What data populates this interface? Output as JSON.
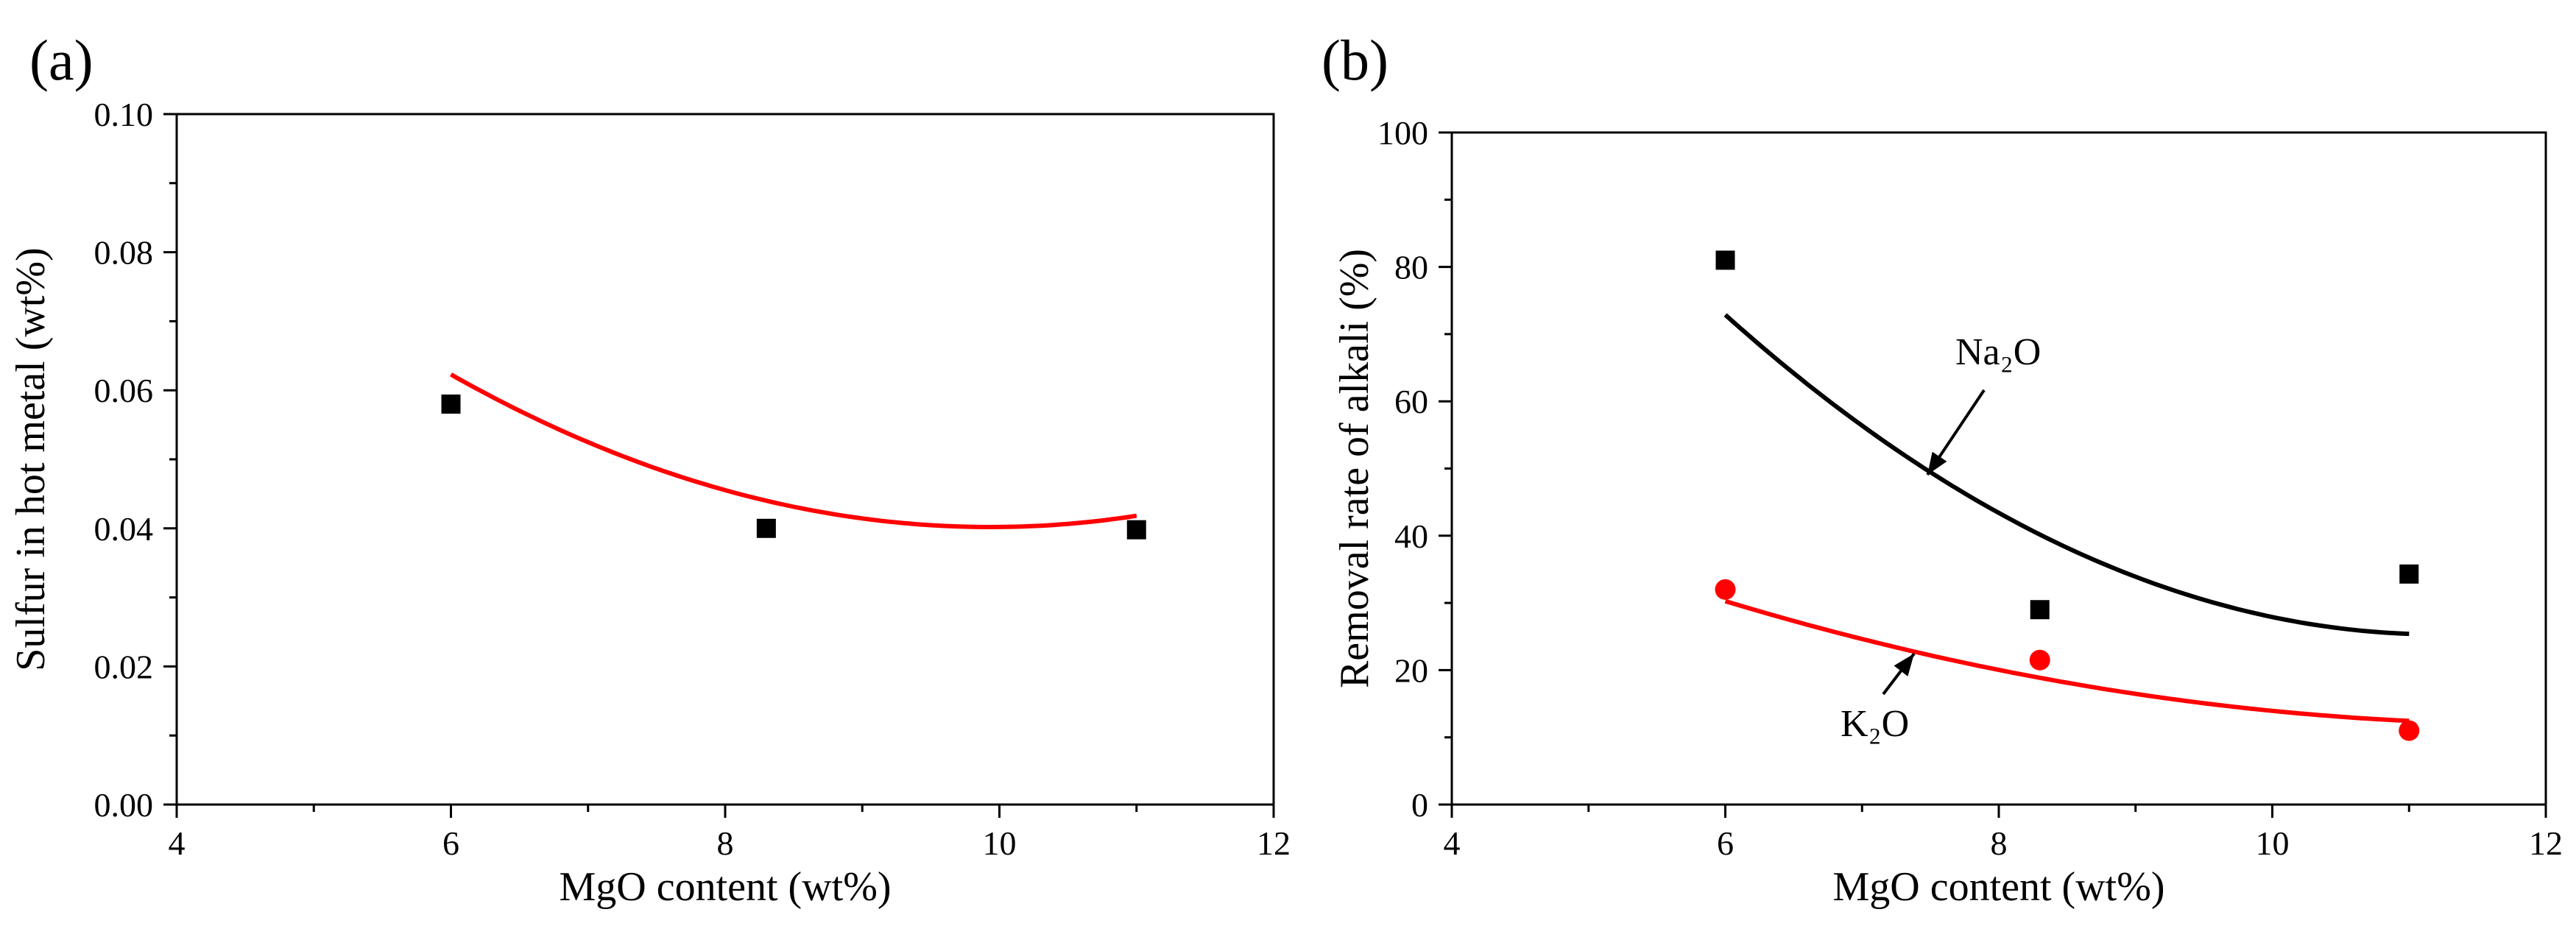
{
  "chart_data": [
    {
      "panel_label": "(a)",
      "type": "scatter",
      "xlabel": "MgO content (wt%)",
      "ylabel": "Sulfur in hot metal (wt%)",
      "xlim": [
        4,
        12
      ],
      "ylim": [
        0,
        0.1
      ],
      "xticks": [
        4,
        6,
        8,
        10,
        12
      ],
      "xtick_labels": [
        "4",
        "6",
        "8",
        "10",
        "12"
      ],
      "yticks": [
        0,
        0.02,
        0.04,
        0.06,
        0.08,
        0.1
      ],
      "ytick_labels": [
        "0.00",
        "0.02",
        "0.04",
        "0.06",
        "0.08",
        "0.10"
      ],
      "series": [
        {
          "name": "Sulfur",
          "marker": "square",
          "color": "#000000",
          "x": [
            6,
            8.3,
            11
          ],
          "y": [
            0.058,
            0.04,
            0.0398
          ],
          "fit": {
            "color": "#ff0000",
            "x_range": [
              6,
              11
            ],
            "coeffs": [
              0.1811,
              -0.02837,
              0.001428
            ]
          }
        }
      ]
    },
    {
      "panel_label": "(b)",
      "type": "scatter",
      "xlabel": "MgO content (wt%)",
      "ylabel": "Removal rate of alkali  (%)",
      "xlim": [
        4,
        12
      ],
      "ylim": [
        0,
        100
      ],
      "xticks": [
        4,
        6,
        8,
        10,
        12
      ],
      "xtick_labels": [
        "4",
        "6",
        "8",
        "10",
        "12"
      ],
      "yticks": [
        0,
        20,
        40,
        60,
        80,
        100
      ],
      "ytick_labels": [
        "0",
        "20",
        "40",
        "60",
        "80",
        "100"
      ],
      "series": [
        {
          "name": "Na2O",
          "marker": "square",
          "color": "#000000",
          "x": [
            6,
            8.3,
            11
          ],
          "y": [
            81,
            29,
            34.3
          ],
          "fit": {
            "color": "#000000",
            "x_range": [
              6,
              11
            ],
            "coeffs": [
              245.2,
              -39.21,
              1.748
            ]
          }
        },
        {
          "name": "K2O",
          "marker": "circle",
          "color": "#ff0000",
          "x": [
            6,
            8.3,
            11
          ],
          "y": [
            32,
            21.5,
            11
          ],
          "fit": {
            "color": "#ff0000",
            "x_range": [
              6,
              11
            ],
            "coeffs": [
              85.76,
              -12.35,
              0.5168
            ]
          }
        }
      ],
      "annotations": [
        {
          "text": "Na₂O",
          "series": "Na2O"
        },
        {
          "text": "K₂O",
          "series": "K2O"
        }
      ]
    }
  ]
}
